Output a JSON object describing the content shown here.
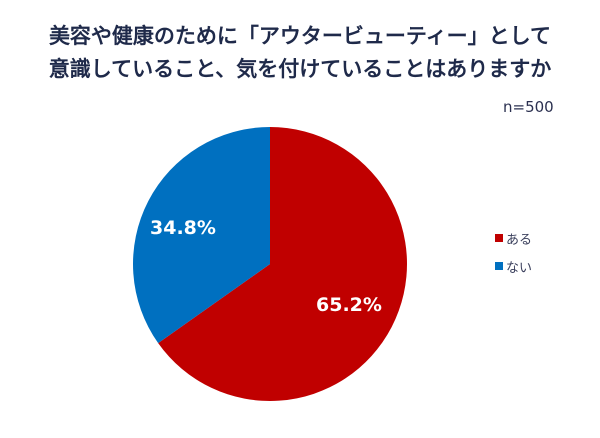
{
  "title": {
    "line1": "美容や健康のために「アウタービューティー」として",
    "line2": "意識していること、気を付けていることはありますか"
  },
  "sample_size": "n=500",
  "slices": [
    {
      "label": "ある",
      "value_label": "65.2%",
      "color": "#c00000"
    },
    {
      "label": "ない",
      "value_label": "34.8%",
      "color": "#0070c0"
    }
  ],
  "legend": {
    "items": [
      {
        "label": "ある",
        "color": "#c00000"
      },
      {
        "label": "ない",
        "color": "#0070c0"
      }
    ]
  },
  "chart_data": {
    "type": "pie",
    "title": "美容や健康のために「アウタービューティー」として意識していること、気を付けていることはありますか",
    "subtitle": "n=500",
    "categories": [
      "ある",
      "ない"
    ],
    "values": [
      65.2,
      34.8
    ],
    "colors": [
      "#c00000",
      "#0070c0"
    ],
    "data_labels": [
      "65.2%",
      "34.8%"
    ],
    "start_angle": "top, clockwise",
    "legend_position": "right"
  }
}
